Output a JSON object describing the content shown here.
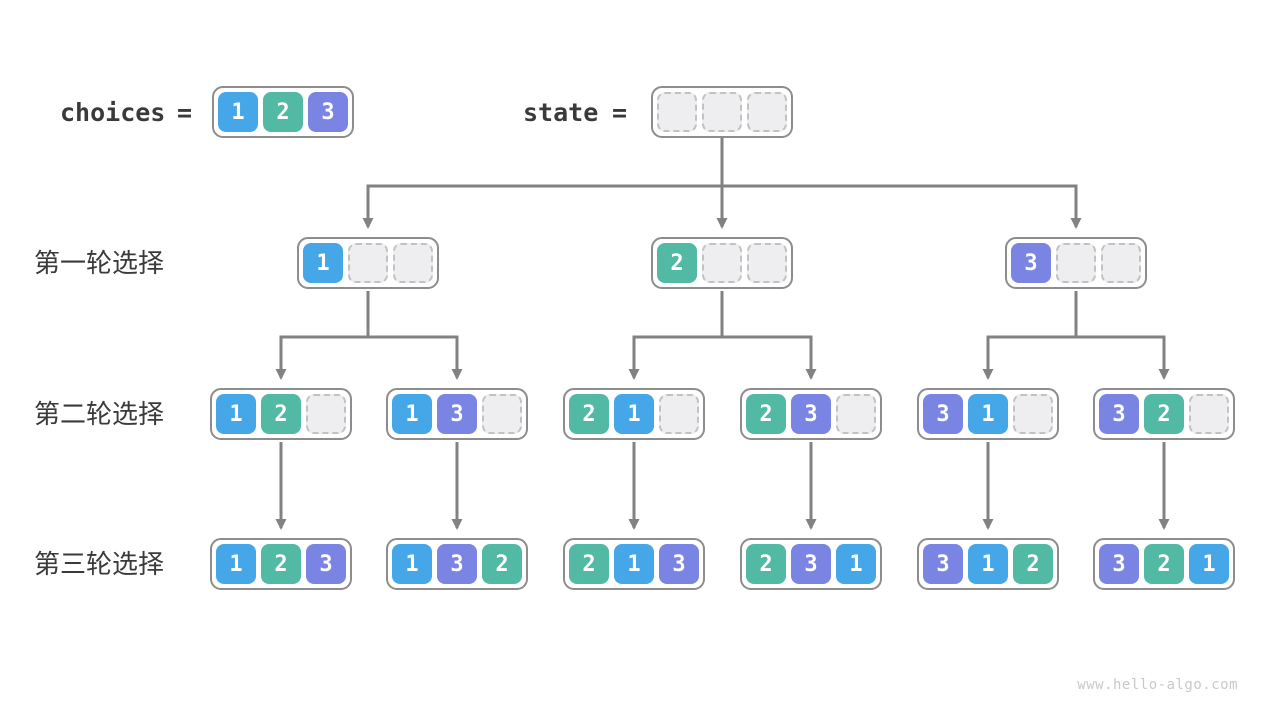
{
  "header": {
    "choices_label": "choices",
    "state_label": "state",
    "equals": "=",
    "choices_cells": [
      "1",
      "2",
      "3"
    ],
    "state_cells": [
      "",
      "",
      ""
    ]
  },
  "rows": [
    {
      "label": "第一轮选择",
      "boxes": [
        [
          "1",
          "",
          ""
        ],
        [
          "2",
          "",
          ""
        ],
        [
          "3",
          "",
          ""
        ]
      ]
    },
    {
      "label": "第二轮选择",
      "boxes": [
        [
          "1",
          "2",
          ""
        ],
        [
          "1",
          "3",
          ""
        ],
        [
          "2",
          "1",
          ""
        ],
        [
          "2",
          "3",
          ""
        ],
        [
          "3",
          "1",
          ""
        ],
        [
          "3",
          "2",
          ""
        ]
      ]
    },
    {
      "label": "第三轮选择",
      "boxes": [
        [
          "1",
          "2",
          "3"
        ],
        [
          "1",
          "3",
          "2"
        ],
        [
          "2",
          "1",
          "3"
        ],
        [
          "2",
          "3",
          "1"
        ],
        [
          "3",
          "1",
          "2"
        ],
        [
          "3",
          "2",
          "1"
        ]
      ]
    }
  ],
  "colors": {
    "1": "#45a6e8",
    "2": "#52b9a4",
    "3": "#7a84e3",
    "arrow": "#828282",
    "box_border": "#8d8d8d",
    "empty_fill": "#eeeef0",
    "empty_border": "#c2c2c2",
    "label_text": "#3a3a3a",
    "watermark_text": "#c9c9c9"
  },
  "watermark": "www.hello-algo.com"
}
